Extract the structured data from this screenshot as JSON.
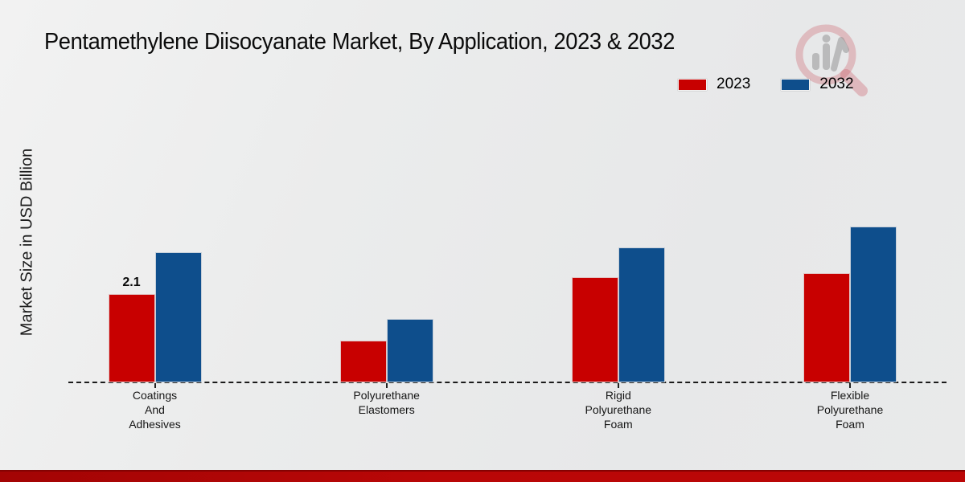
{
  "title": "Pentamethylene Diisocyanate Market, By Application, 2023 & 2032",
  "y_axis_label": "Market Size in USD Billion",
  "legend": [
    {
      "label": "2023",
      "color": "#c80000"
    },
    {
      "label": "2032",
      "color": "#0e4e8c"
    }
  ],
  "watermark_icon": "magnifier-bar-chart-logo",
  "colors": {
    "series_2023": "#c80000",
    "series_2032": "#0e4e8c",
    "footer_band": "#b90707",
    "background": "#e9eaea"
  },
  "chart_data": {
    "type": "bar",
    "title": "Pentamethylene Diisocyanate Market, By Application, 2023 & 2032",
    "categories": [
      "Coatings\nAnd\nAdhesives",
      "Polyurethane\nElastomers",
      "Rigid\nPolyurethane\nFoam",
      "Flexible\nPolyurethane\nFoam"
    ],
    "series": [
      {
        "name": "2023",
        "color": "#c80000",
        "values": [
          2.1,
          1.0,
          2.5,
          2.6
        ]
      },
      {
        "name": "2032",
        "color": "#0e4e8c",
        "values": [
          3.1,
          1.5,
          3.2,
          3.7
        ]
      }
    ],
    "xlabel": "",
    "ylabel": "Market Size in USD Billion",
    "ylim": [
      0,
      4
    ],
    "grid": false,
    "legend_position": "top-right",
    "baseline_style": "dashed",
    "bar_label": {
      "category_index": 0,
      "series_index": 0,
      "text": "2.1"
    }
  }
}
